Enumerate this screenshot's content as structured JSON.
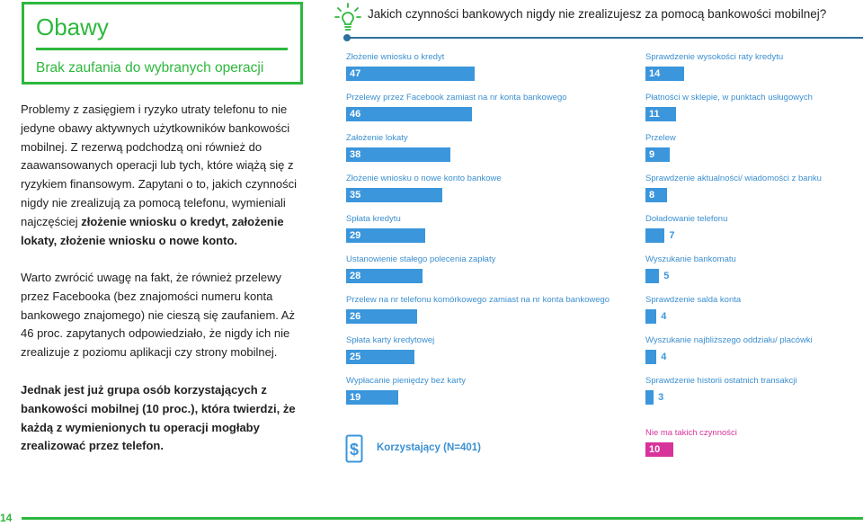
{
  "left_panel": {
    "title": "Obawy",
    "subtitle": "Brak zaufania do wybranych operacji",
    "para1_normal": "Problemy z zasięgiem i ryzyko utraty telefonu to nie jedyne obawy aktywnych użytkowników bankowości mobilnej. Z rezerwą podchodzą oni również do zaawansowanych operacji lub tych, które wiążą się z ryzykiem finansowym. Zapytani o to, jakich czynności nigdy nie zrealizują za pomocą telefonu, wymieniali najczęściej ",
    "para1_bold": "złożenie wniosku o kredyt, założenie lokaty, złożenie wniosku o nowe konto.",
    "para2": "Warto zwrócić uwagę na fakt, że również przelewy przez Facebooka (bez znajomości numeru konta bankowego znajomego) nie cieszą się zaufaniem. Aż 46 proc. zapytanych odpowiedziało, że nigdy ich nie zrealizuje z poziomu aplikacji czy strony mobilnej.",
    "para3": "Jednak jest już grupa osób korzystających z bankowości mobilnej (10 proc.), która twierdzi, że każdą z wymienionych tu operacji mogłaby zrealizować przez telefon."
  },
  "colors": {
    "accent_green": "#2db83d",
    "bar_blue": "#3b96dc",
    "bar_magenta": "#d8339b",
    "header_line": "#2d6f9f"
  },
  "icons": [
    "lightbulb-icon",
    "wallet-dollar-icon"
  ],
  "page_number": "14",
  "chart_data": {
    "type": "bar",
    "orientation": "horizontal",
    "title": "Jakich czynności bankowych nigdy nie zrealizujesz za pomocą bankowości mobilnej?",
    "base_label": "Korzystający (N=401)",
    "columns": [
      {
        "categories": [
          "Złożenie wniosku o kredyt",
          "Przelewy przez Facebook zamiast na nr konta bankowego",
          "Założenie lokaty",
          "Złożenie wniosku o nowe konto bankowe",
          "Spłata kredytu",
          "Ustanowienie stałego polecenia zapłaty",
          "Przelew na nr telefonu komórkowego zamiast na nr konta bankowego",
          "Spłata karty kredytowej",
          "Wypłacanie pieniędzy bez karty"
        ],
        "values": [
          47,
          46,
          38,
          35,
          29,
          28,
          26,
          25,
          19
        ]
      },
      {
        "categories": [
          "Sprawdzenie wysokości raty kredytu",
          "Płatności w sklepie, w punktach usługowych",
          "Przelew",
          "Sprawdzenie aktualności/ wiadomości z banku",
          "Doładowanie telefonu",
          "Wyszukanie bankomatu",
          "Sprawdzenie salda konta",
          "Wyszukanie najbliższego oddziału/ placówki",
          "Sprawdzenie historii ostatnich transakcji",
          "Nie ma takich czynności"
        ],
        "values": [
          14,
          11,
          9,
          8,
          7,
          5,
          4,
          4,
          3,
          10
        ],
        "highlight": "Nie ma takich czynności"
      }
    ],
    "unit": "%",
    "grid": false
  }
}
